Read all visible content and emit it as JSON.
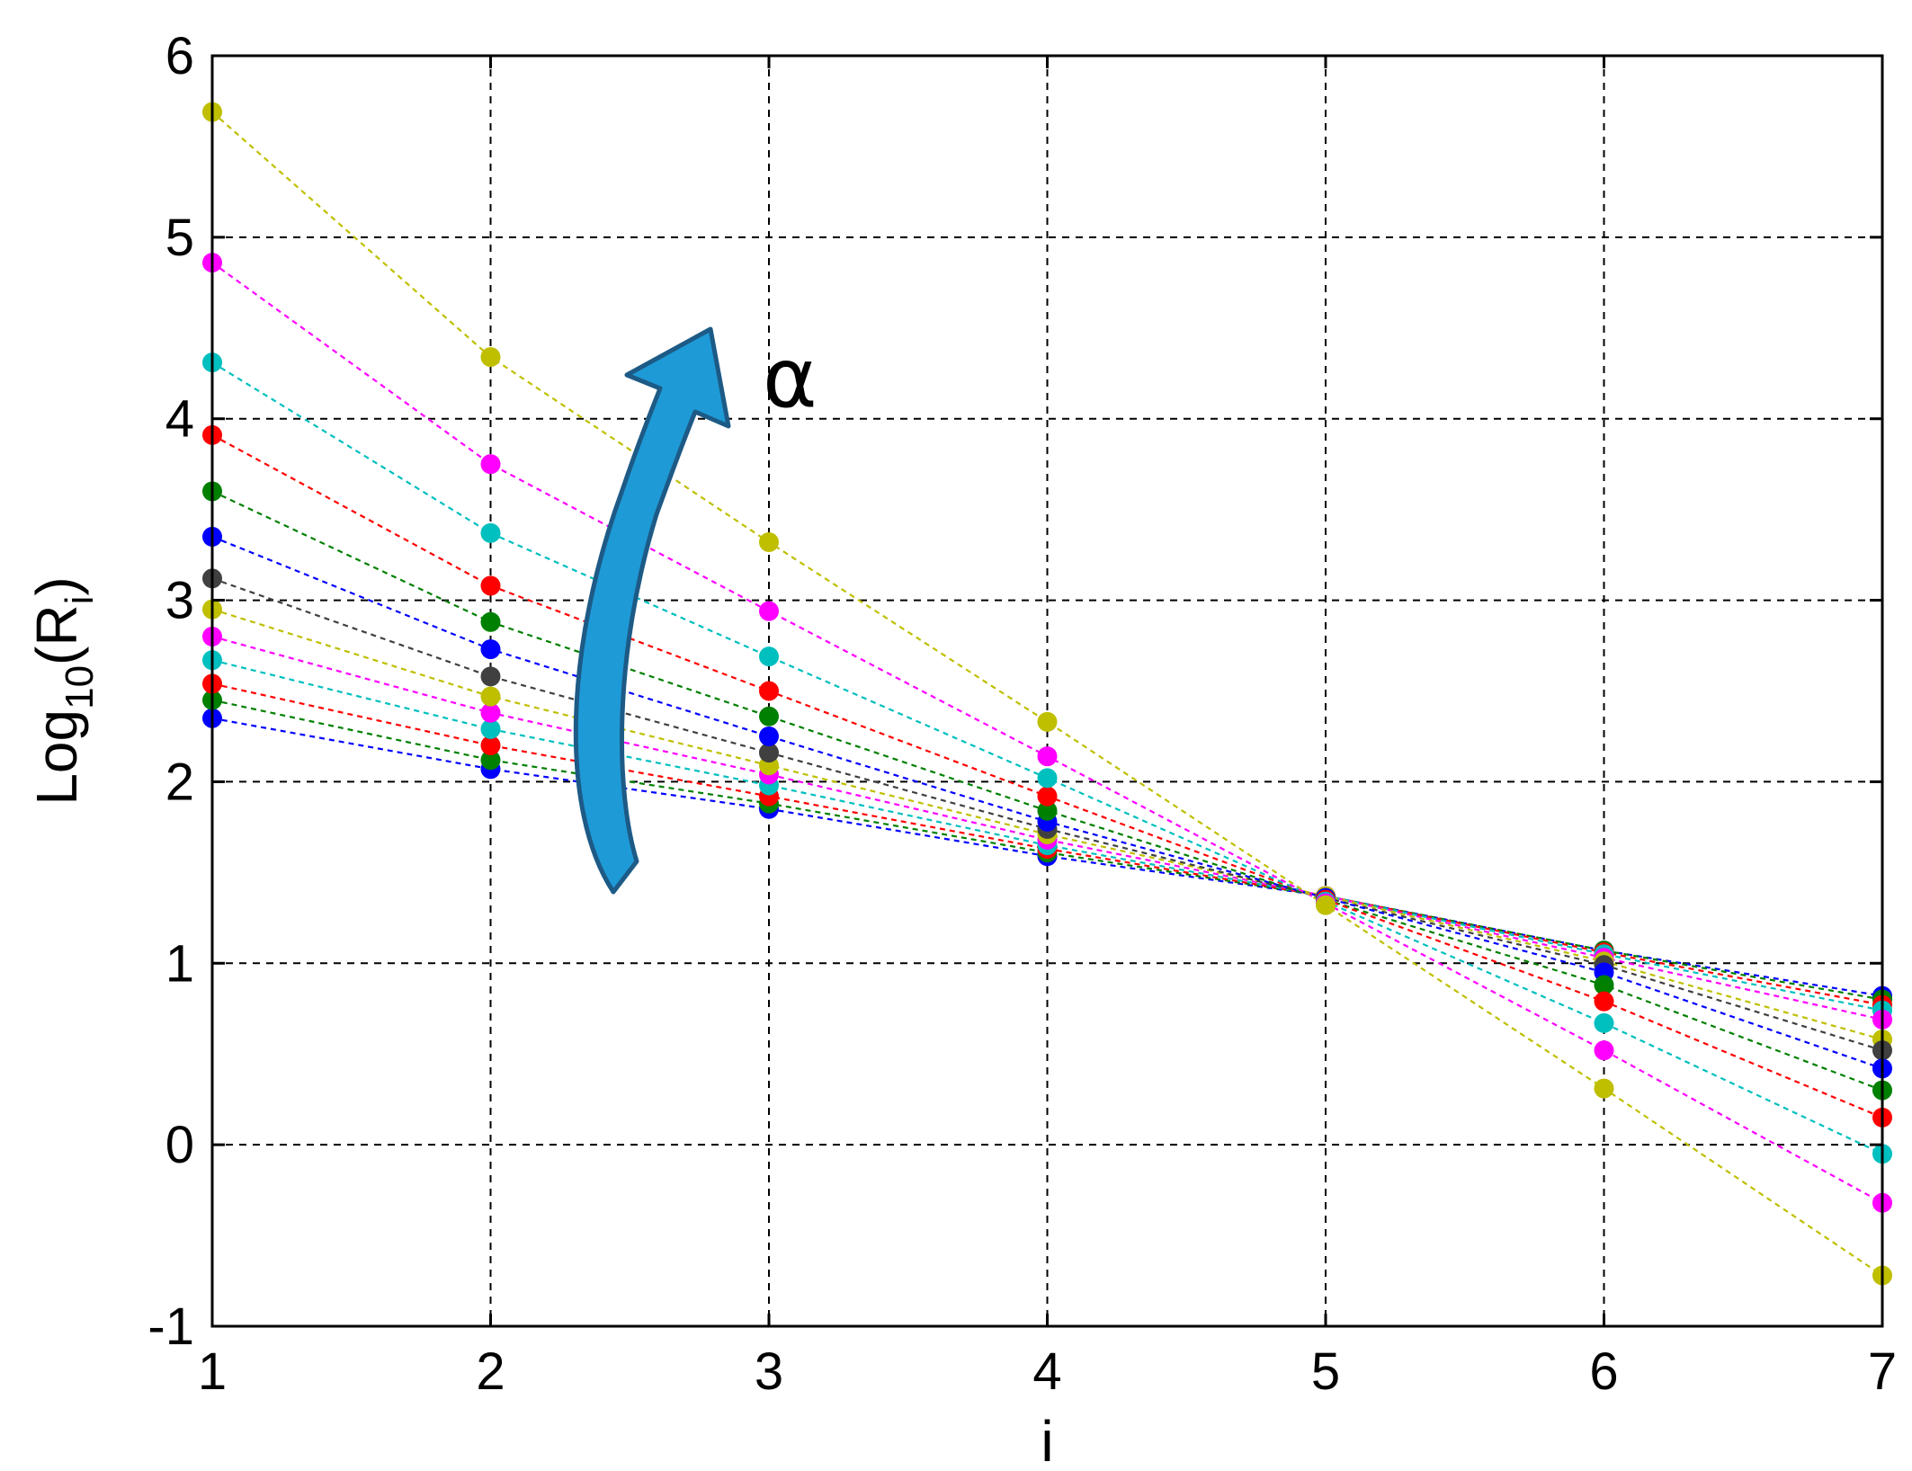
{
  "chart_data": {
    "type": "line",
    "xlabel": "i",
    "ylabel_main": "Log",
    "ylabel_sub": "10",
    "ylabel_open": "(R",
    "ylabel_sub2": "i",
    "ylabel_close": ")",
    "xlim": [
      1,
      7
    ],
    "ylim": [
      -1,
      6
    ],
    "xticks": [
      1,
      2,
      3,
      4,
      5,
      6,
      7
    ],
    "yticks": [
      -1,
      0,
      1,
      2,
      3,
      4,
      5,
      6
    ],
    "grid": true,
    "legend": "none",
    "line_style": "dotted",
    "marker": "circle",
    "x": [
      1,
      2,
      3,
      4,
      5,
      6,
      7
    ],
    "series": [
      {
        "color": "#0000ff",
        "values": [
          2.35,
          2.07,
          1.85,
          1.59,
          1.37,
          1.07,
          0.82
        ]
      },
      {
        "color": "#008000",
        "values": [
          2.45,
          2.12,
          1.88,
          1.61,
          1.37,
          1.07,
          0.8
        ]
      },
      {
        "color": "#ff0000",
        "values": [
          2.54,
          2.2,
          1.92,
          1.63,
          1.37,
          1.06,
          0.77
        ]
      },
      {
        "color": "#00bfbf",
        "values": [
          2.67,
          2.29,
          1.98,
          1.65,
          1.37,
          1.05,
          0.74
        ]
      },
      {
        "color": "#ff00ff",
        "values": [
          2.8,
          2.38,
          2.04,
          1.68,
          1.37,
          1.03,
          0.69
        ]
      },
      {
        "color": "#bfbf00",
        "values": [
          2.95,
          2.47,
          2.09,
          1.71,
          1.37,
          1.01,
          0.58
        ]
      },
      {
        "color": "#404040",
        "values": [
          3.12,
          2.58,
          2.16,
          1.74,
          1.36,
          0.99,
          0.52
        ]
      },
      {
        "color": "#0000ff",
        "values": [
          3.35,
          2.73,
          2.25,
          1.78,
          1.36,
          0.95,
          0.42
        ]
      },
      {
        "color": "#008000",
        "values": [
          3.6,
          2.88,
          2.36,
          1.84,
          1.35,
          0.88,
          0.3
        ]
      },
      {
        "color": "#ff0000",
        "values": [
          3.91,
          3.08,
          2.5,
          1.92,
          1.35,
          0.79,
          0.15
        ]
      },
      {
        "color": "#00bfbf",
        "values": [
          4.31,
          3.37,
          2.69,
          2.02,
          1.34,
          0.67,
          -0.05
        ]
      },
      {
        "color": "#ff00ff",
        "values": [
          4.86,
          3.75,
          2.94,
          2.14,
          1.33,
          0.52,
          -0.32
        ]
      },
      {
        "color": "#bfbf00",
        "values": [
          5.69,
          4.34,
          3.32,
          2.33,
          1.32,
          0.31,
          -0.72
        ]
      }
    ],
    "annotations": [
      {
        "text": "α",
        "arrow_color": "#1e9ad6",
        "arrow_outline": "#1d5a86",
        "meaning": "increasing"
      }
    ]
  }
}
